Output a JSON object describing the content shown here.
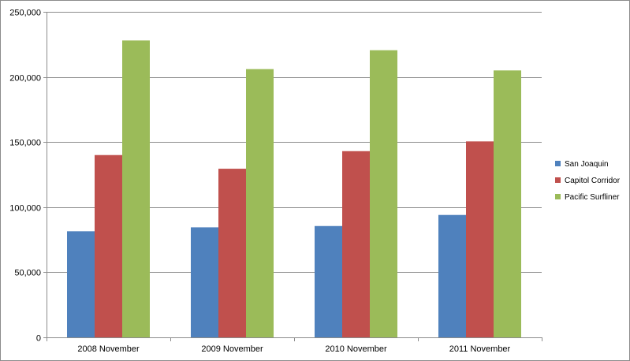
{
  "chart_data": {
    "type": "bar",
    "title": "",
    "xlabel": "",
    "ylabel": "",
    "categories": [
      "2008 November",
      "2009 November",
      "2010 November",
      "2011 November"
    ],
    "series": [
      {
        "name": "San Joaquin",
        "color": "#4f81bd",
        "values": [
          81500,
          84500,
          85500,
          94000
        ]
      },
      {
        "name": "Capitol Corridor",
        "color": "#c0504d",
        "values": [
          140000,
          129500,
          143000,
          150500
        ]
      },
      {
        "name": "Pacific Surfliner",
        "color": "#9bbb59",
        "values": [
          228000,
          206000,
          220500,
          205000
        ]
      }
    ],
    "ylim": [
      0,
      250000
    ],
    "yticks": [
      0,
      50000,
      100000,
      150000,
      200000,
      250000
    ],
    "ytick_labels": [
      "0",
      "50,000",
      "100,000",
      "150,000",
      "200,000",
      "250,000"
    ],
    "grid": true,
    "legend_position": "right"
  }
}
